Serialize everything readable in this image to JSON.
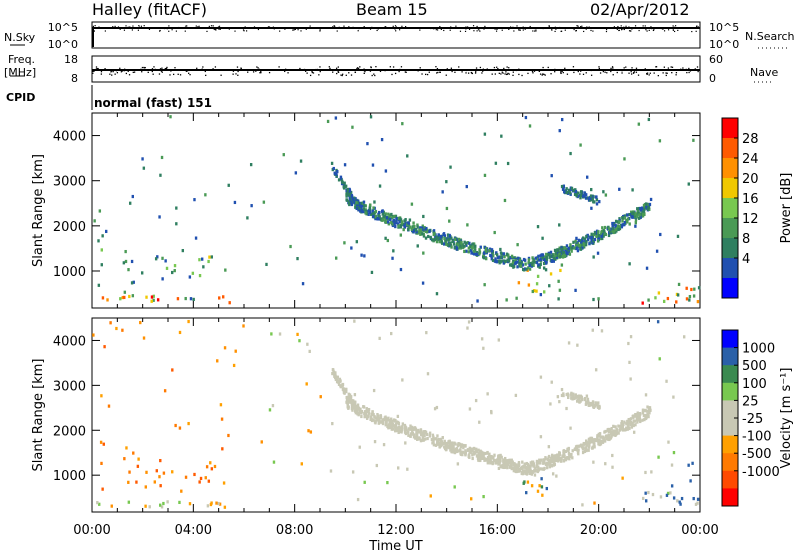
{
  "header": {
    "station": "Halley (fitACF)",
    "beam": "Beam 15",
    "date": "02/Apr/2012"
  },
  "panels": {
    "sky_label": "N.Sky",
    "search_label": "N.Search",
    "freq_label_1": "Freq.",
    "freq_label_2": "[MHz]",
    "nave_label": "Nave",
    "cpid_label": "CPID",
    "cpid_value": "normal (fast) 151",
    "sky_ticks": [
      "10^5",
      "10^0"
    ],
    "search_ticks": [
      "10^5",
      "10^0"
    ],
    "freq_ticks": [
      "18",
      "8"
    ],
    "nave_ticks": [
      "60",
      "0"
    ]
  },
  "colors": {
    "power": [
      "#0000ff",
      "#2050b0",
      "#2f7f60",
      "#4a9a55",
      "#78c850",
      "#f0c800",
      "#ff9000",
      "#ff5a00",
      "#ff0000"
    ],
    "velocity": [
      "#ff0000",
      "#ff4a00",
      "#ff7a00",
      "#ffa000",
      "#c8c8b4",
      "#c8c8b4",
      "#78c850",
      "#3a8a50",
      "#2a60a8",
      "#0000ff"
    ],
    "ground_scatter": "#c8c8b4"
  },
  "chart_data": [
    {
      "type": "heatmap",
      "name": "power",
      "ylabel": "Slant Range [km]",
      "colorbar_label": "Power [dB]",
      "colorbar_ticks": [
        "28",
        "24",
        "20",
        "16",
        "12",
        "8",
        "4"
      ],
      "xlim": [
        "00:00",
        "00:00"
      ],
      "ylim": [
        180,
        4500
      ],
      "yticks": [
        1000,
        2000,
        3000,
        4000
      ],
      "regions": [
        {
          "t0": 0.0,
          "t1": 5.5,
          "r0": 250,
          "r1": 420,
          "density": 0.85,
          "v": [
            6,
            30
          ]
        },
        {
          "t0": 1.2,
          "t1": 1.8,
          "r0": 700,
          "r1": 1500,
          "density": 0.5,
          "v": [
            4,
            20
          ]
        },
        {
          "t0": 2.4,
          "t1": 3.3,
          "r0": 700,
          "r1": 1300,
          "density": 0.55,
          "v": [
            4,
            20
          ]
        },
        {
          "t0": 3.6,
          "t1": 4.8,
          "r0": 700,
          "r1": 1300,
          "density": 0.55,
          "v": [
            4,
            20
          ]
        },
        {
          "t0": 0.2,
          "t1": 0.6,
          "r0": 600,
          "r1": 1800,
          "density": 0.3,
          "v": [
            4,
            16
          ]
        },
        {
          "t0": 16.8,
          "t1": 18.5,
          "r0": 500,
          "r1": 1100,
          "density": 0.7,
          "v": [
            8,
            26
          ]
        },
        {
          "t0": 21.5,
          "t1": 24.0,
          "r0": 250,
          "r1": 600,
          "density": 0.85,
          "v": [
            6,
            30
          ]
        },
        {
          "t0": 18.0,
          "t1": 20.0,
          "r0": 250,
          "r1": 350,
          "density": 0.4,
          "v": [
            4,
            16
          ]
        }
      ],
      "arc": {
        "t0": 10.0,
        "t1": 22.0,
        "r_start": 2600,
        "r_min": 1100,
        "t_min": 17.0,
        "r_end": 2400,
        "width": 250,
        "v": [
          4,
          14
        ]
      },
      "arc2": {
        "t0": 9.4,
        "t1": 10.6,
        "r0": 2300,
        "r1": 3300,
        "v": [
          4,
          10
        ]
      },
      "arc3": {
        "t0": 18.5,
        "t1": 20.0,
        "r0": 2500,
        "r1": 2800,
        "v": [
          4,
          10
        ]
      }
    },
    {
      "type": "heatmap",
      "name": "velocity",
      "ylabel": "Slant Range [km]",
      "colorbar_label": "Velocity [m s⁻¹]",
      "colorbar_ticks": [
        "1000",
        "500",
        "100",
        "25",
        "-25",
        "-100",
        "-500",
        "-1000"
      ],
      "xlim": [
        "00:00",
        "00:00"
      ],
      "ylim": [
        180,
        4500
      ],
      "yticks": [
        1000,
        2000,
        3000,
        4000
      ],
      "xticks": [
        "00:00",
        "04:00",
        "08:00",
        "12:00",
        "16:00",
        "20:00",
        "00:00"
      ],
      "xlabel": "Time UT"
    }
  ]
}
